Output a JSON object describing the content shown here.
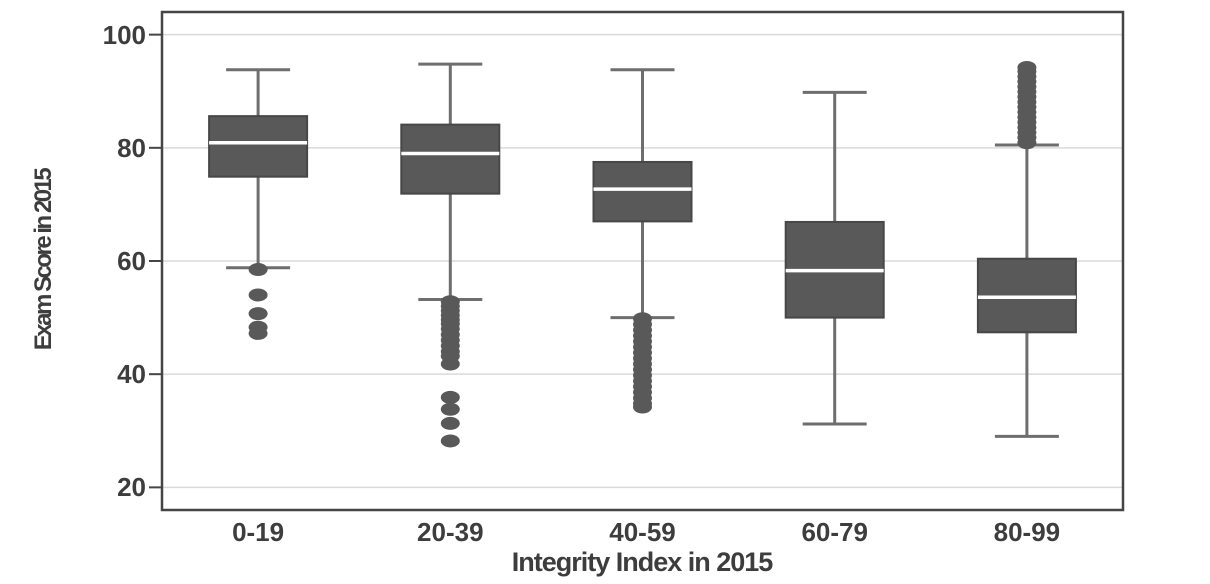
{
  "figure": {
    "background": "#ffffff"
  },
  "chart_data": {
    "type": "boxplot",
    "title": "",
    "xlabel": "Integrity Index in 2015",
    "ylabel": "Exam Score in 2015",
    "categories": [
      "0-19",
      "20-39",
      "40-59",
      "60-79",
      "80-99"
    ],
    "ylim": [
      16,
      104
    ],
    "yticks": [
      20,
      40,
      60,
      80,
      100
    ],
    "grid": "horizontal",
    "legend": "none",
    "series": [
      {
        "category": "0-19",
        "whisker_low": 58.8,
        "q1": 74.9,
        "median": 80.9,
        "q3": 85.6,
        "whisker_high": 93.8,
        "outliers": [
          58.5,
          54.0,
          50.7,
          48.3,
          47.2
        ]
      },
      {
        "category": "20-39",
        "whisker_low": 53.2,
        "q1": 71.9,
        "median": 79.0,
        "q3": 84.1,
        "whisker_high": 94.8,
        "outliers": [
          52.8,
          52.0,
          51.2,
          50.4,
          49.6,
          48.9,
          48.0,
          47.0,
          46.0,
          45.0,
          44.0,
          43.2,
          41.8,
          35.9,
          33.8,
          31.3,
          28.2
        ]
      },
      {
        "category": "40-59",
        "whisker_low": 50.0,
        "q1": 67.0,
        "median": 72.7,
        "q3": 77.5,
        "whisker_high": 93.8,
        "outliers": [
          49.8,
          48.8,
          47.8,
          46.8,
          45.8,
          44.8,
          43.8,
          42.8,
          41.8,
          40.8,
          39.8,
          38.8,
          37.8,
          36.8,
          35.8,
          34.8,
          34.2
        ]
      },
      {
        "category": "60-79",
        "whisker_low": 31.2,
        "q1": 50.0,
        "median": 58.3,
        "q3": 66.9,
        "whisker_high": 89.8,
        "outliers": []
      },
      {
        "category": "80-99",
        "whisker_low": 29.0,
        "q1": 47.4,
        "median": 53.6,
        "q3": 60.4,
        "whisker_high": 80.5,
        "outliers": [
          80.9,
          81.8,
          82.7,
          83.6,
          84.5,
          85.4,
          86.3,
          87.2,
          88.1,
          89.0,
          89.9,
          90.8,
          91.7,
          92.6,
          93.5,
          94.2
        ]
      }
    ],
    "colors": {
      "box_fill": "#595959",
      "box_stroke": "#474747",
      "median_line": "#ffffff",
      "whisker": "#6e6e6e",
      "outlier": "#595959",
      "gridline": "#dadada",
      "frame": "#454545",
      "text": "#3d3d3d"
    }
  }
}
